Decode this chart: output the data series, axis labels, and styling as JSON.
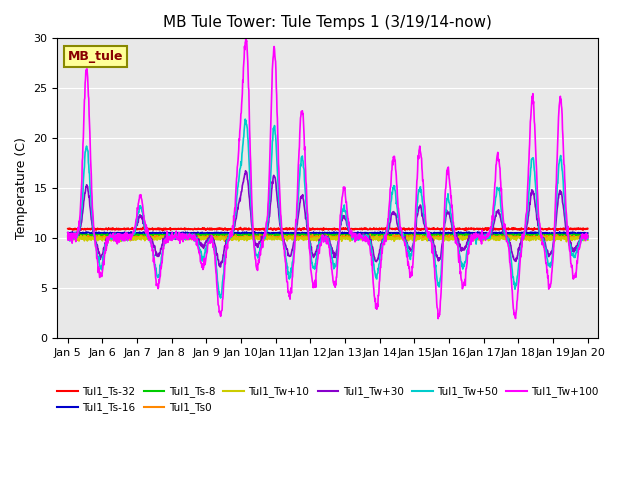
{
  "title": "MB Tule Tower: Tule Temps 1 (3/19/14-now)",
  "ylabel": "Temperature (C)",
  "xlabel": "",
  "ylim": [
    0,
    30
  ],
  "yticks": [
    0,
    5,
    10,
    15,
    20,
    25,
    30
  ],
  "xtick_labels": [
    "Jan 5",
    "Jan 6",
    "Jan 7",
    "Jan 8",
    "Jan 9",
    "Jan 10",
    "Jan 11",
    "Jan 12",
    "Jan 13",
    "Jan 14",
    "Jan 15",
    "Jan 16",
    "Jan 17",
    "Jan 18",
    "Jan 19",
    "Jan 20"
  ],
  "bg_color": "#e8e8e8",
  "legend_box_text": "MB_tule",
  "legend_box_bg": "#ffff99",
  "legend_box_border": "#888800",
  "colors": {
    "Tul1_Ts-32": "#ff0000",
    "Tul1_Ts-16": "#0000cc",
    "Tul1_Ts-8": "#00cc00",
    "Tul1_Ts0": "#ff8800",
    "Tul1_Tw+10": "#cccc00",
    "Tul1_Tw+30": "#8800cc",
    "Tul1_Tw+50": "#00cccc",
    "Tul1_Tw+100": "#ff00ff"
  }
}
